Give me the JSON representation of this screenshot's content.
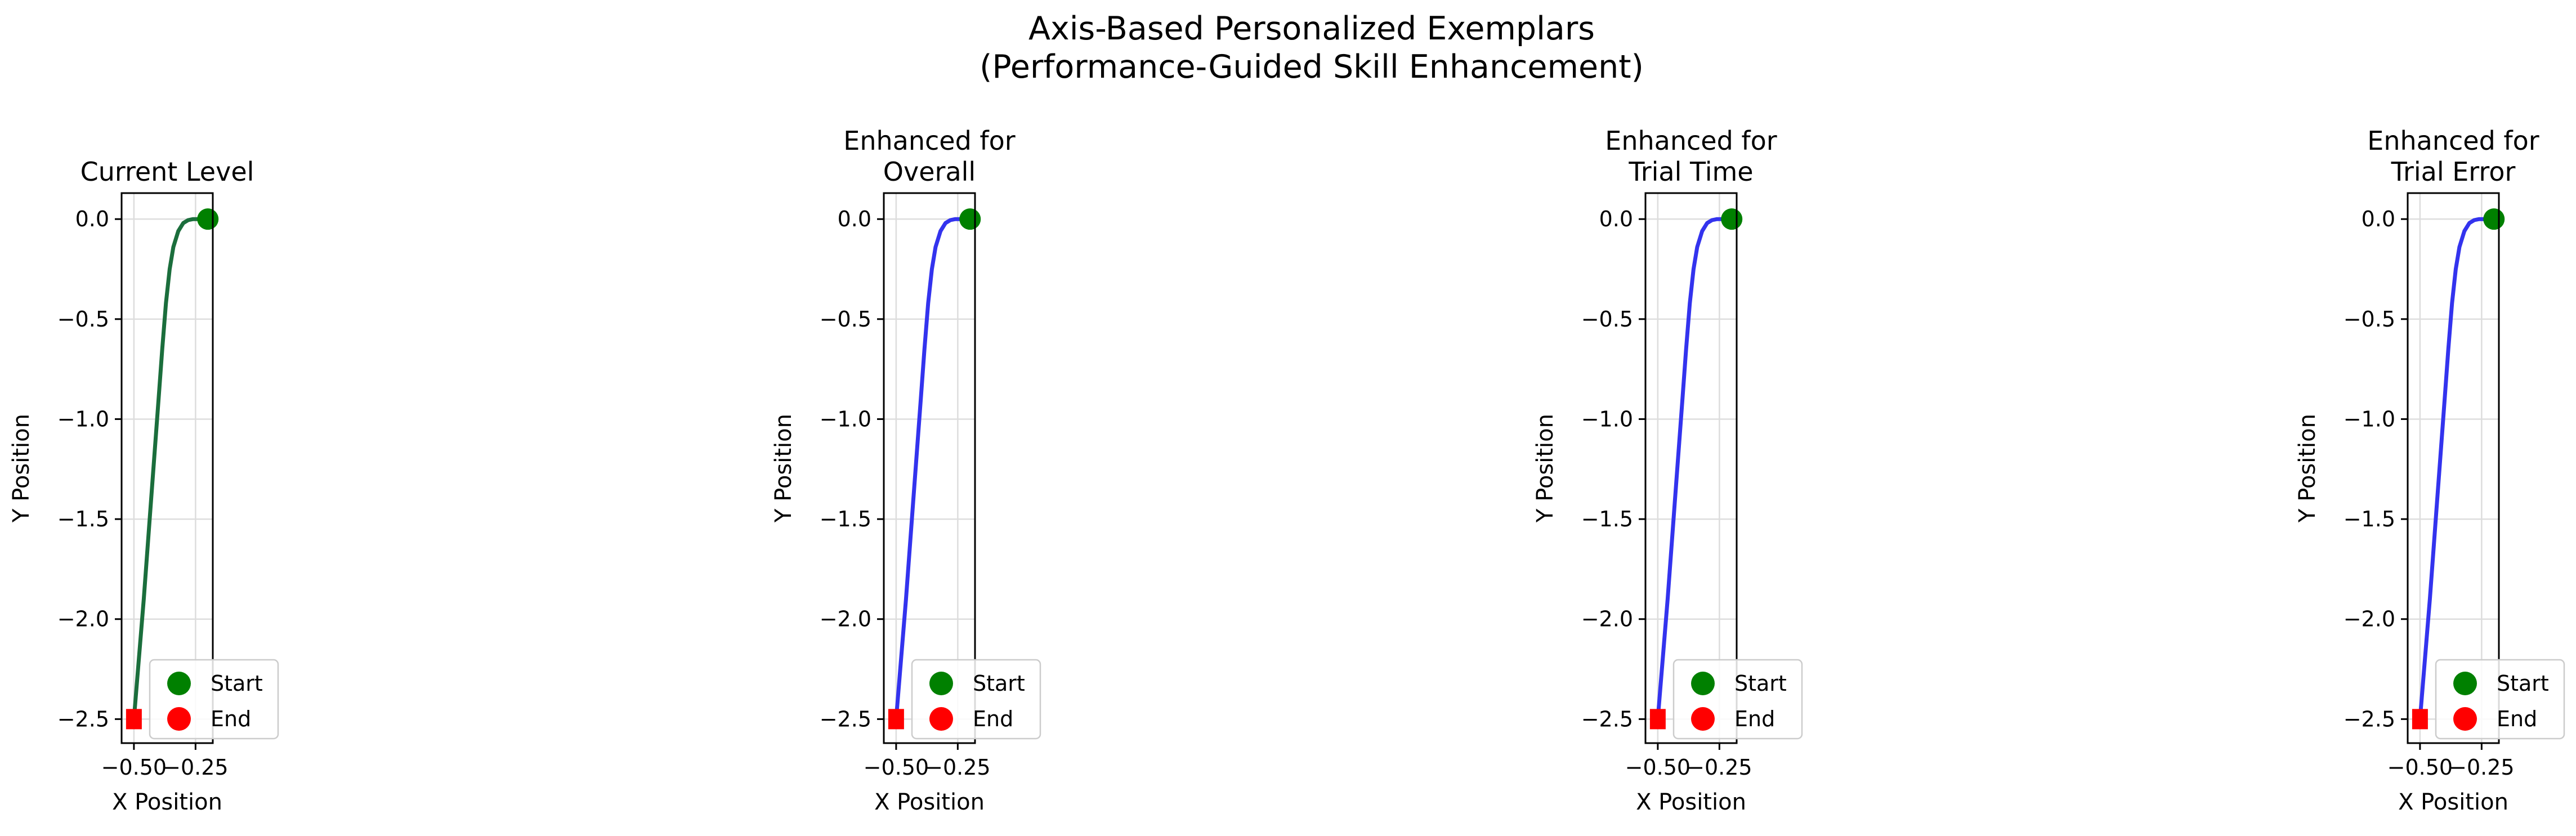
{
  "figure": {
    "title_line1": "Axis-Based Personalized Exemplars",
    "title_line2": "(Performance-Guided Skill Enhancement)"
  },
  "chart_data": [
    {
      "type": "line",
      "title": "Current Level",
      "xlabel": "X Position",
      "ylabel": "Y Position",
      "xlim": [
        -0.55,
        -0.18
      ],
      "ylim": [
        -2.62,
        0.13
      ],
      "xticks": [
        -0.5,
        -0.25
      ],
      "xtick_labels": [
        "−0.50",
        "−0.25"
      ],
      "yticks": [
        0.0,
        -0.5,
        -1.0,
        -1.5,
        -2.0,
        -2.5
      ],
      "ytick_labels": [
        "0.0",
        "−0.5",
        "−1.0",
        "−1.5",
        "−2.0",
        "−2.5"
      ],
      "grid": true,
      "legend_position": "lower-right",
      "legend": [
        "Start",
        "End"
      ],
      "series": [
        {
          "color": "#1b6e3c",
          "x": [
            -0.5,
            -0.46,
            -0.43,
            -0.4,
            -0.385,
            -0.37,
            -0.355,
            -0.34,
            -0.32,
            -0.3,
            -0.28,
            -0.26,
            -0.24,
            -0.22,
            -0.2
          ],
          "y": [
            -2.5,
            -1.9,
            -1.4,
            -0.9,
            -0.65,
            -0.42,
            -0.25,
            -0.14,
            -0.06,
            -0.02,
            -0.005,
            0.0,
            0.0,
            0.0,
            0.0
          ]
        }
      ],
      "start_point": {
        "x": -0.2,
        "y": 0.0,
        "color": "#008000"
      },
      "end_point": {
        "x": -0.5,
        "y": -2.5,
        "color": "#ff0000"
      }
    },
    {
      "type": "line",
      "title": "Enhanced for\nOverall",
      "xlabel": "X Position",
      "ylabel": "Y Position",
      "xlim": [
        -0.55,
        -0.18
      ],
      "ylim": [
        -2.62,
        0.13
      ],
      "xticks": [
        -0.5,
        -0.25
      ],
      "xtick_labels": [
        "−0.50",
        "−0.25"
      ],
      "yticks": [
        0.0,
        -0.5,
        -1.0,
        -1.5,
        -2.0,
        -2.5
      ],
      "ytick_labels": [
        "0.0",
        "−0.5",
        "−1.0",
        "−1.5",
        "−2.0",
        "−2.5"
      ],
      "grid": true,
      "legend_position": "lower-right",
      "legend": [
        "Start",
        "End"
      ],
      "series": [
        {
          "color": "#3333ee",
          "x": [
            -0.5,
            -0.46,
            -0.43,
            -0.4,
            -0.385,
            -0.37,
            -0.355,
            -0.34,
            -0.32,
            -0.3,
            -0.28,
            -0.26,
            -0.24,
            -0.22,
            -0.2
          ],
          "y": [
            -2.5,
            -1.9,
            -1.4,
            -0.9,
            -0.65,
            -0.42,
            -0.25,
            -0.14,
            -0.06,
            -0.02,
            -0.005,
            0.0,
            0.0,
            0.0,
            0.0
          ]
        }
      ],
      "start_point": {
        "x": -0.2,
        "y": 0.0,
        "color": "#008000"
      },
      "end_point": {
        "x": -0.5,
        "y": -2.5,
        "color": "#ff0000"
      }
    },
    {
      "type": "line",
      "title": "Enhanced for\nTrial Time",
      "xlabel": "X Position",
      "ylabel": "Y Position",
      "xlim": [
        -0.55,
        -0.18
      ],
      "ylim": [
        -2.62,
        0.13
      ],
      "xticks": [
        -0.5,
        -0.25
      ],
      "xtick_labels": [
        "−0.50",
        "−0.25"
      ],
      "yticks": [
        0.0,
        -0.5,
        -1.0,
        -1.5,
        -2.0,
        -2.5
      ],
      "ytick_labels": [
        "0.0",
        "−0.5",
        "−1.0",
        "−1.5",
        "−2.0",
        "−2.5"
      ],
      "grid": true,
      "legend_position": "lower-right",
      "legend": [
        "Start",
        "End"
      ],
      "series": [
        {
          "color": "#3333ee",
          "x": [
            -0.5,
            -0.46,
            -0.43,
            -0.4,
            -0.385,
            -0.37,
            -0.355,
            -0.34,
            -0.32,
            -0.3,
            -0.28,
            -0.26,
            -0.24,
            -0.22,
            -0.2
          ],
          "y": [
            -2.5,
            -1.9,
            -1.4,
            -0.9,
            -0.65,
            -0.42,
            -0.25,
            -0.14,
            -0.06,
            -0.02,
            -0.005,
            0.0,
            0.0,
            0.0,
            0.0
          ]
        }
      ],
      "start_point": {
        "x": -0.2,
        "y": 0.0,
        "color": "#008000"
      },
      "end_point": {
        "x": -0.5,
        "y": -2.5,
        "color": "#ff0000"
      }
    },
    {
      "type": "line",
      "title": "Enhanced for\nTrial Error",
      "xlabel": "X Position",
      "ylabel": "Y Position",
      "xlim": [
        -0.55,
        -0.18
      ],
      "ylim": [
        -2.62,
        0.13
      ],
      "xticks": [
        -0.5,
        -0.25
      ],
      "xtick_labels": [
        "−0.50",
        "−0.25"
      ],
      "yticks": [
        0.0,
        -0.5,
        -1.0,
        -1.5,
        -2.0,
        -2.5
      ],
      "ytick_labels": [
        "0.0",
        "−0.5",
        "−1.0",
        "−1.5",
        "−2.0",
        "−2.5"
      ],
      "grid": true,
      "legend_position": "lower-right",
      "legend": [
        "Start",
        "End"
      ],
      "series": [
        {
          "color": "#3333ee",
          "x": [
            -0.5,
            -0.46,
            -0.43,
            -0.4,
            -0.385,
            -0.37,
            -0.355,
            -0.34,
            -0.32,
            -0.3,
            -0.28,
            -0.26,
            -0.24,
            -0.22,
            -0.2
          ],
          "y": [
            -2.5,
            -1.9,
            -1.4,
            -0.9,
            -0.65,
            -0.42,
            -0.25,
            -0.14,
            -0.06,
            -0.02,
            -0.005,
            0.0,
            0.0,
            0.0,
            0.0
          ]
        }
      ],
      "start_point": {
        "x": -0.2,
        "y": 0.0,
        "color": "#008000"
      },
      "end_point": {
        "x": -0.5,
        "y": -2.5,
        "color": "#ff0000"
      }
    }
  ]
}
